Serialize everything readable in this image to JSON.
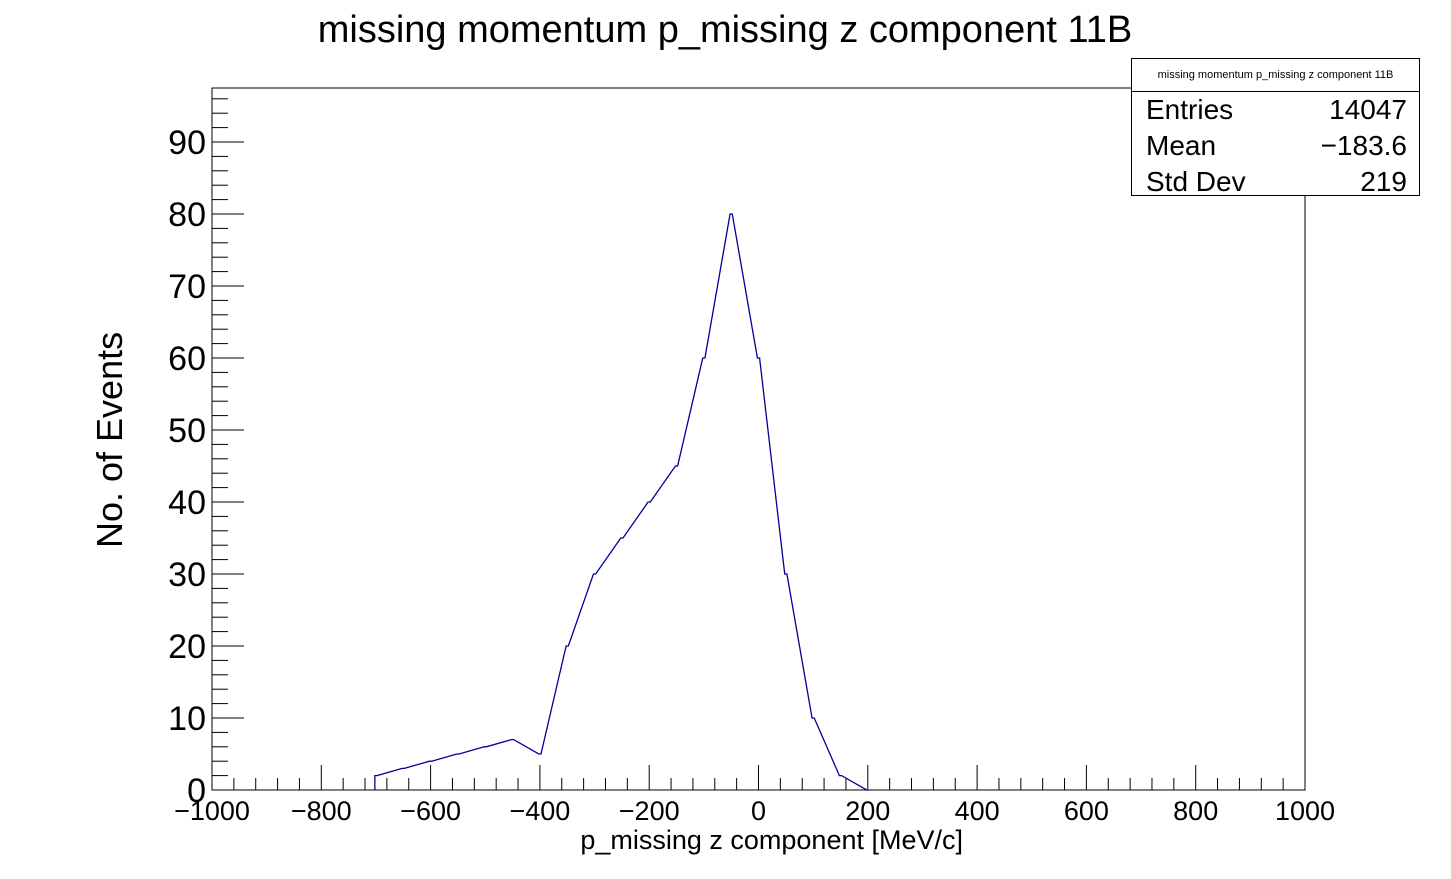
{
  "chart_data": {
    "type": "histogram",
    "title": "missing momentum p_missing z component 11B",
    "xlabel": "p_missing z component [MeV/c]",
    "ylabel": "No. of Events",
    "xlim": [
      -1000,
      1000
    ],
    "ylim": [
      0,
      97.5
    ],
    "x_ticks": [
      "−1000",
      "−800",
      "−600",
      "−400",
      "−200",
      "0",
      "200",
      "400",
      "600",
      "800",
      "1000"
    ],
    "y_ticks": [
      "0",
      "10",
      "20",
      "30",
      "40",
      "50",
      "60",
      "70",
      "80",
      "90"
    ],
    "line_color": "#000099",
    "bin_width": 4,
    "series": [
      {
        "x": [
          -700,
          -650,
          -600,
          -550,
          -500,
          -450,
          -400,
          -350,
          -300,
          -250,
          -200,
          -150,
          -100,
          -50,
          0,
          50,
          100,
          150,
          200
        ],
        "values": [
          2,
          3,
          4,
          5,
          6,
          7,
          5,
          20,
          30,
          35,
          40,
          45,
          60,
          80,
          60,
          30,
          10,
          2,
          0
        ]
      }
    ],
    "stats": {
      "title": "missing momentum p_missing z component 11B",
      "rows": [
        {
          "key": "Entries",
          "value": "14047"
        },
        {
          "key": "Mean",
          "value": "−183.6"
        },
        {
          "key": "Std Dev",
          "value": "219"
        }
      ]
    }
  }
}
